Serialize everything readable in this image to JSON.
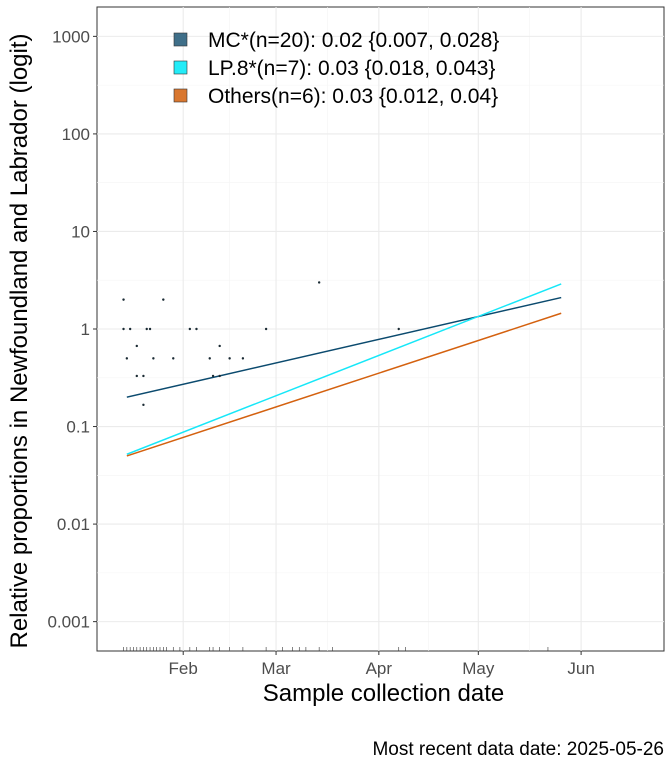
{
  "chart_data": {
    "type": "scatter",
    "title": "",
    "xlabel": "Sample collection date",
    "ylabel": "Relative proportions in Newfoundland and Labrador (logit)",
    "caption": "Most recent data date: 2025-05-26",
    "y_scale": "log",
    "y_ticks": [
      {
        "value": 0.001,
        "label": "0.001"
      },
      {
        "value": 0.01,
        "label": "0.01"
      },
      {
        "value": 0.1,
        "label": "0.1"
      },
      {
        "value": 1,
        "label": "1"
      },
      {
        "value": 10,
        "label": "10"
      },
      {
        "value": 100,
        "label": "100"
      },
      {
        "value": 1000,
        "label": "1000"
      }
    ],
    "x_ticks": [
      {
        "value": "2025-02-01",
        "label": "Feb"
      },
      {
        "value": "2025-03-01",
        "label": "Mar"
      },
      {
        "value": "2025-04-01",
        "label": "Apr"
      },
      {
        "value": "2025-05-01",
        "label": "May"
      },
      {
        "value": "2025-06-01",
        "label": "Jun"
      }
    ],
    "xlim": [
      "2025-01-06",
      "2025-06-26"
    ],
    "ylim": [
      0.0005,
      2000
    ],
    "grid": true,
    "legend_position": "top-left",
    "series": [
      {
        "name": "MC*(n=20): 0.02 {0.007, 0.028}",
        "color": "#0b4a6e",
        "fill": "#3f6f89",
        "line": [
          {
            "x": "2025-01-15",
            "y": 0.2
          },
          {
            "x": "2025-05-26",
            "y": 2.1
          }
        ]
      },
      {
        "name": "LP.8*(n=7): 0.03 {0.018, 0.043}",
        "color": "#16e7f8",
        "fill": "#23ecf8",
        "line": [
          {
            "x": "2025-01-15",
            "y": 0.052
          },
          {
            "x": "2025-05-26",
            "y": 2.9
          }
        ]
      },
      {
        "name": "Others(n=6): 0.03 {0.012, 0.04}",
        "color": "#d4610f",
        "fill": "#d9772f",
        "line": [
          {
            "x": "2025-01-15",
            "y": 0.05
          },
          {
            "x": "2025-05-26",
            "y": 1.45
          }
        ]
      }
    ],
    "points": [
      {
        "x": "2025-01-14",
        "y": 2
      },
      {
        "x": "2025-01-14",
        "y": 1
      },
      {
        "x": "2025-01-15",
        "y": 0.5
      },
      {
        "x": "2025-01-16",
        "y": 1
      },
      {
        "x": "2025-01-18",
        "y": 0.67
      },
      {
        "x": "2025-01-18",
        "y": 0.33
      },
      {
        "x": "2025-01-20",
        "y": 0.33
      },
      {
        "x": "2025-01-20",
        "y": 0.167
      },
      {
        "x": "2025-01-21",
        "y": 1
      },
      {
        "x": "2025-01-22",
        "y": 1
      },
      {
        "x": "2025-01-23",
        "y": 0.5
      },
      {
        "x": "2025-01-26",
        "y": 2
      },
      {
        "x": "2025-01-29",
        "y": 0.5
      },
      {
        "x": "2025-02-03",
        "y": 1
      },
      {
        "x": "2025-02-05",
        "y": 1
      },
      {
        "x": "2025-02-09",
        "y": 0.5
      },
      {
        "x": "2025-02-10",
        "y": 0.33
      },
      {
        "x": "2025-02-12",
        "y": 0.67
      },
      {
        "x": "2025-02-12",
        "y": 0.33
      },
      {
        "x": "2025-02-15",
        "y": 0.5
      },
      {
        "x": "2025-02-19",
        "y": 0.5
      },
      {
        "x": "2025-02-26",
        "y": 1
      },
      {
        "x": "2025-03-14",
        "y": 3
      },
      {
        "x": "2025-04-07",
        "y": 1
      }
    ],
    "rug_dates": [
      "2025-01-14",
      "2025-01-15",
      "2025-01-16",
      "2025-01-17",
      "2025-01-18",
      "2025-01-19",
      "2025-01-20",
      "2025-01-21",
      "2025-01-22",
      "2025-01-23",
      "2025-01-24",
      "2025-01-25",
      "2025-01-26",
      "2025-01-27",
      "2025-01-29",
      "2025-01-31",
      "2025-02-03",
      "2025-02-05",
      "2025-02-09",
      "2025-02-10",
      "2025-02-12",
      "2025-02-15",
      "2025-02-19",
      "2025-02-26",
      "2025-03-03",
      "2025-03-06",
      "2025-03-08",
      "2025-03-10",
      "2025-03-14",
      "2025-03-18",
      "2025-04-07",
      "2025-04-09",
      "2025-05-22"
    ]
  }
}
